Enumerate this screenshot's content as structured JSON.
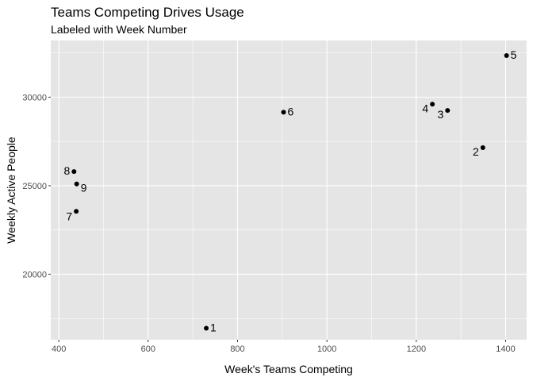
{
  "chart_data": {
    "type": "scatter",
    "title": "Teams Competing Drives Usage",
    "subtitle": "Labeled with Week Number",
    "xlabel": "Week's Teams Competing",
    "ylabel": "Weekly Active People",
    "xlim": [
      382,
      1447
    ],
    "ylim": [
      16300,
      33200
    ],
    "x_ticks": [
      400,
      600,
      800,
      1000,
      1200,
      1400
    ],
    "y_ticks": [
      20000,
      25000,
      30000
    ],
    "grid": true,
    "background": "#e5e5e5",
    "grid_color": "#ffffff",
    "point_color": "#000000",
    "points": [
      {
        "label": "1",
        "x": 730,
        "y": 16950
      },
      {
        "label": "2",
        "x": 1349,
        "y": 27150
      },
      {
        "label": "3",
        "x": 1270,
        "y": 29250
      },
      {
        "label": "4",
        "x": 1236,
        "y": 29600
      },
      {
        "label": "5",
        "x": 1402,
        "y": 32350
      },
      {
        "label": "6",
        "x": 903,
        "y": 29150
      },
      {
        "label": "7",
        "x": 439,
        "y": 23550
      },
      {
        "label": "8",
        "x": 434,
        "y": 25800
      },
      {
        "label": "9",
        "x": 440,
        "y": 25100
      }
    ]
  }
}
